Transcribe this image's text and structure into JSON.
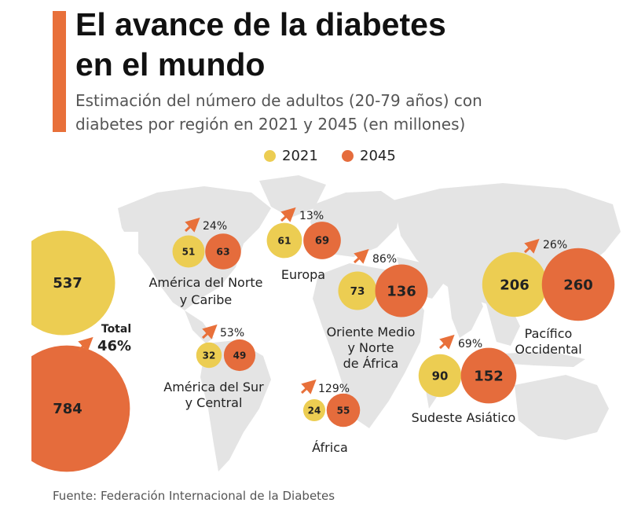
{
  "header": {
    "title_line1": "El avance de la diabetes",
    "title_line2": "en el mundo",
    "subtitle_line1": "Estimación del número de adultos (20-79 años) con",
    "subtitle_line2": "diabetes por región en 2021 y 2045 (en millones)"
  },
  "legend": {
    "label_2021": "2021",
    "label_2045": "2045"
  },
  "colors": {
    "c2021": "#eccd52",
    "c2045": "#e56c3c",
    "accent": "#e8703a",
    "arrow": "#e8703a",
    "map": "#e4e4e4"
  },
  "chart_data": {
    "type": "bubble",
    "title": "El avance de la diabetes en el mundo",
    "subtitle": "Estimación del número de adultos (20-79 años) con diabetes por región en 2021 y 2045 (en millones)",
    "series": [
      "2021",
      "2045"
    ],
    "regions": [
      {
        "name_lines": [
          "América del Norte",
          "y Caribe"
        ],
        "v2021": 51,
        "v2045": 63,
        "change": "24%"
      },
      {
        "name_lines": [
          "Europa"
        ],
        "v2021": 61,
        "v2045": 69,
        "change": "13%"
      },
      {
        "name_lines": [
          "Oriente Medio",
          "y Norte",
          "de África"
        ],
        "v2021": 73,
        "v2045": 136,
        "change": "86%"
      },
      {
        "name_lines": [
          "Pacífico",
          "Occidental"
        ],
        "v2021": 206,
        "v2045": 260,
        "change": "26%"
      },
      {
        "name_lines": [
          "América del Sur",
          "y Central"
        ],
        "v2021": 32,
        "v2045": 49,
        "change": "53%"
      },
      {
        "name_lines": [
          "África"
        ],
        "v2021": 24,
        "v2045": 55,
        "change": "129%"
      },
      {
        "name_lines": [
          "Sudeste Asiático"
        ],
        "v2021": 90,
        "v2045": 152,
        "change": "69%"
      }
    ],
    "total": {
      "label": "Total",
      "v2021": 537,
      "v2045": 784,
      "change": "46%"
    }
  },
  "source": "Fuente: Federación Internacional de la Diabetes"
}
